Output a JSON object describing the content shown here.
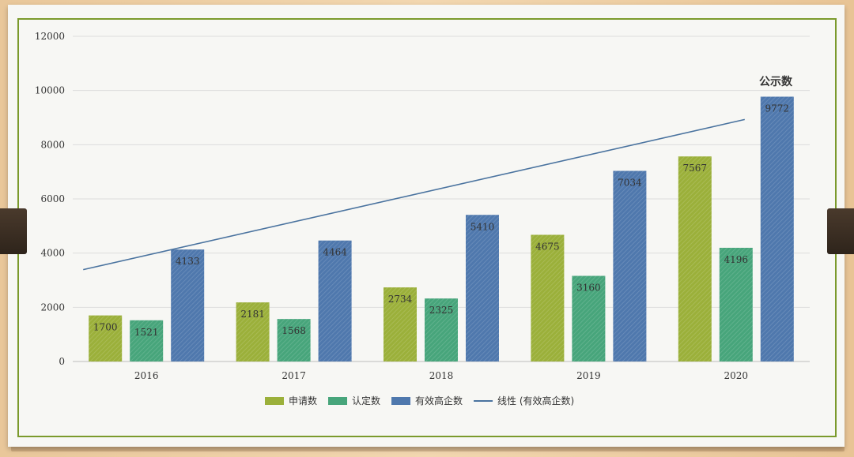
{
  "chart_data": {
    "type": "bar",
    "categories": [
      "2016",
      "2017",
      "2018",
      "2019",
      "2020"
    ],
    "series": [
      {
        "name": "申请数",
        "values": [
          1700,
          2181,
          2734,
          4675,
          7567
        ],
        "color": "#9bb03a"
      },
      {
        "name": "认定数",
        "values": [
          1521,
          1568,
          2325,
          3160,
          4196
        ],
        "color": "#47a57b"
      },
      {
        "name": "有效高企数",
        "values": [
          4133,
          4464,
          5410,
          7034,
          9772
        ],
        "color": "#4f78ad"
      }
    ],
    "trendline": {
      "name": "线性 (有效高企数)",
      "color": "#4a739f",
      "start": 3390,
      "end": 8930
    },
    "ylim": [
      0,
      12000
    ],
    "yticks": [
      0,
      2000,
      4000,
      6000,
      8000,
      10000,
      12000
    ],
    "annotation": "公示数",
    "grid": true,
    "legend_position": "bottom"
  }
}
